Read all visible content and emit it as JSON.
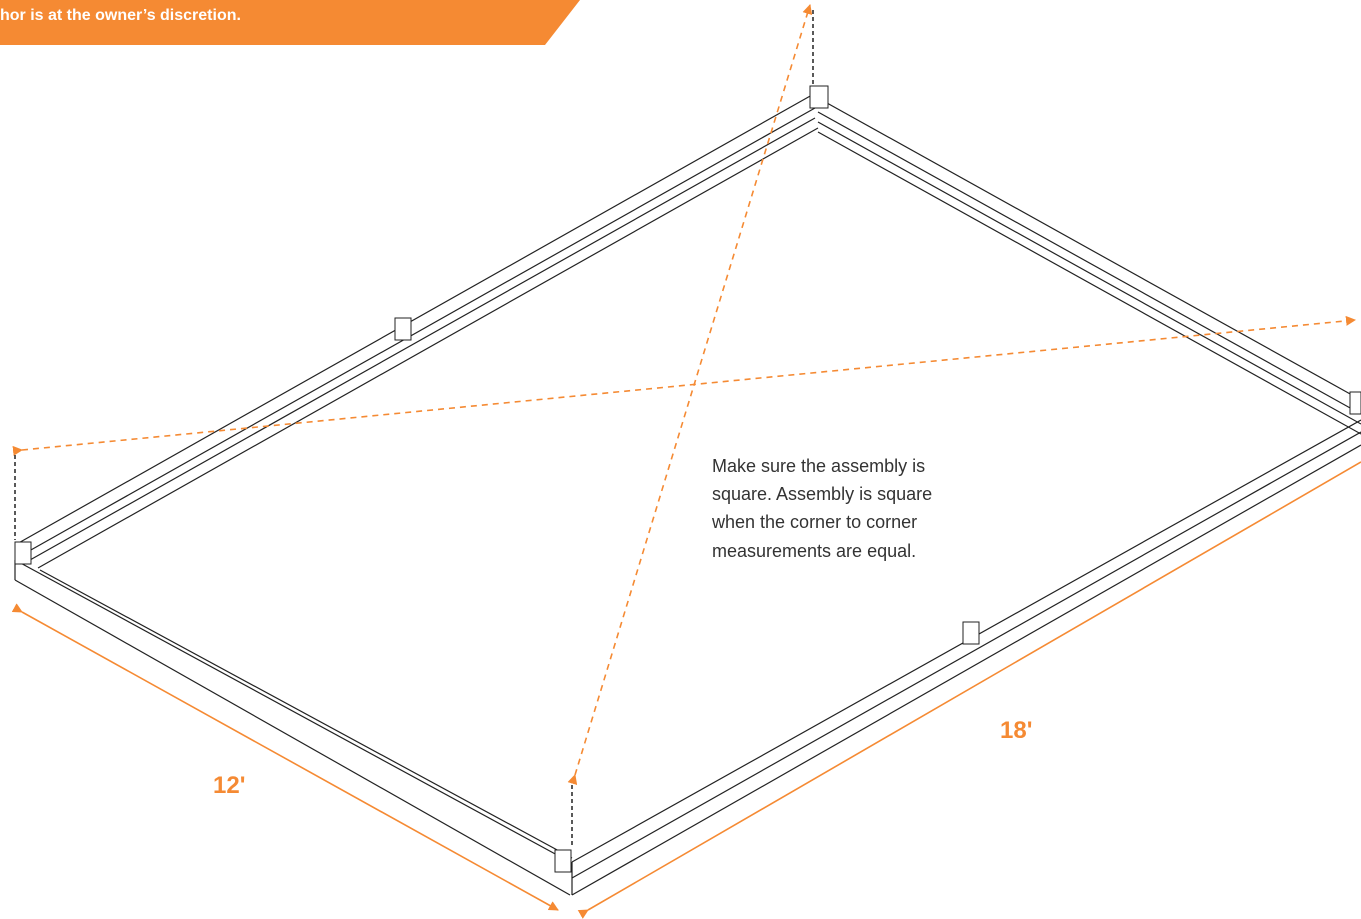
{
  "banner": {
    "text": "hor is at the owner’s discretion."
  },
  "note": {
    "lines": [
      "Make sure the assembly is",
      "square. Assembly is square",
      "when the corner to corner",
      "measurements are equal."
    ]
  },
  "dimensions": {
    "width": "12'",
    "length": "18'"
  }
}
